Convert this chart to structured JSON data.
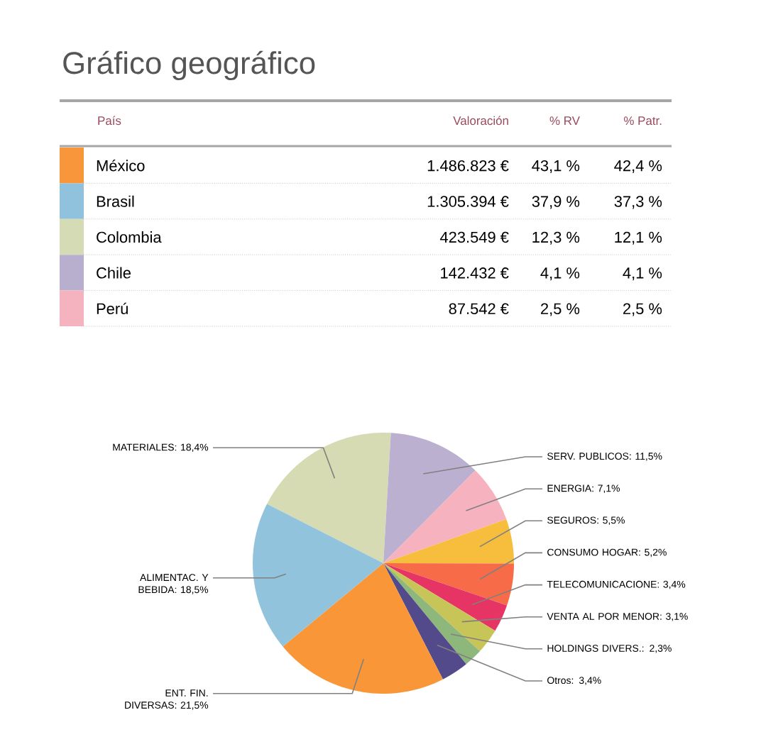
{
  "chart_data": [
    {
      "type": "other",
      "title": "Gráfico geográfico",
      "xlabel": "País",
      "categories": [
        "México",
        "Brasil",
        "Colombia",
        "Chile",
        "Perú"
      ],
      "colors": [
        "#f7963a",
        "#90c2dd",
        "#d5dbb5",
        "#b8afcf",
        "#f5b3c0"
      ],
      "annotations": [
        "Valoración",
        "% RV",
        "% Patr.",
        "1.486.823 €",
        "43,1 %",
        "42,4 %",
        "1.305.394 €",
        "37,9 %",
        "37,3 %",
        "423.549 €",
        "12,3 %",
        "12,1 %",
        "142.432 €",
        "4,1 %",
        "4,1 %",
        "87.542 €",
        "2,5 %",
        "2,5 %"
      ]
    },
    {
      "type": "pie",
      "categories": [
        "MATERIALES",
        "SERV. PUBLICOS",
        "ENERGIA",
        "SEGUROS",
        "CONSUMO HOGAR",
        "TELECOMUNICACIONE",
        "VENTA AL POR MENOR",
        "HOLDINGS DIVERS.",
        "Otros",
        "ENT. FIN. DIVERSAS",
        "ALIMENTAC. Y BEBIDA"
      ],
      "values": [
        18.4,
        11.5,
        7.1,
        5.5,
        5.2,
        3.4,
        3.1,
        2.3,
        3.4,
        21.5,
        18.5
      ],
      "value_labels": [
        ": 18,4%",
        ": 11,5%",
        ": 7,1%",
        ": 5,5%",
        ": 5,2%",
        ": 3,4%",
        ": 3,1%",
        ": 2,3%",
        ": 3,4%",
        ": 21,5%",
        ": 18,5%"
      ],
      "colors": [
        "#d6dbb3",
        "#bbb0d0",
        "#f6b2bf",
        "#f7be3e",
        "#f76b48",
        "#e63565",
        "#c7c458",
        "#8db77b",
        "#534a8c",
        "#f99637",
        "#92c3dd"
      ]
    }
  ]
}
